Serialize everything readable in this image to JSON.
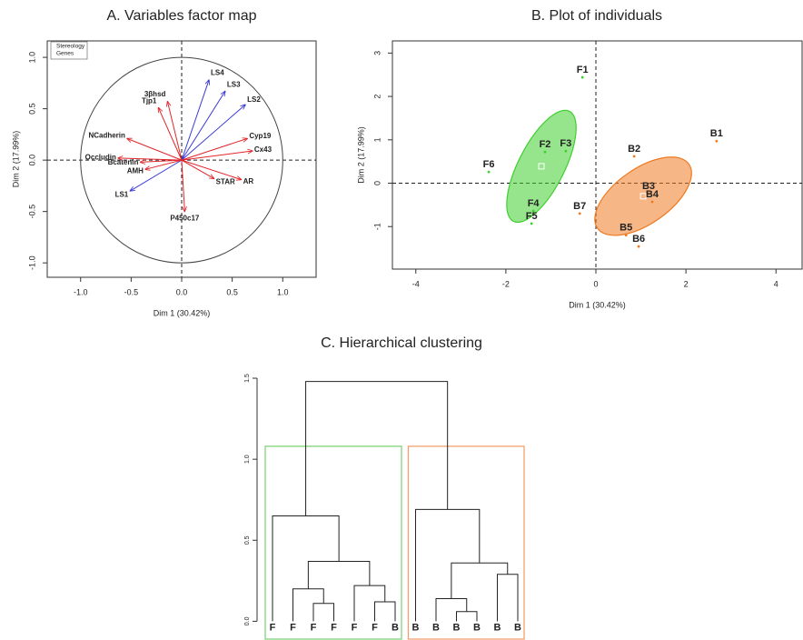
{
  "chart_data": [
    {
      "type": "vector",
      "title": "A. Variables factor map",
      "xlabel": "Dim 1 (30.42%)",
      "ylabel": "Dim 2 (17.99%)",
      "xlim": [
        -1.33,
        1.33
      ],
      "ylim": [
        -1.14,
        1.16
      ],
      "xticks": [
        {
          "value": -1,
          "label": "-1.0"
        },
        {
          "value": -0.5,
          "label": "-0.5"
        },
        {
          "value": 0,
          "label": "0.0"
        },
        {
          "value": 0.5,
          "label": "0.5"
        },
        {
          "value": 1,
          "label": "1.0"
        }
      ],
      "yticks": [
        {
          "value": -1,
          "label": "-1.0"
        },
        {
          "value": -0.5,
          "label": "-0.5"
        },
        {
          "value": 0,
          "label": "0.0"
        },
        {
          "value": 0.5,
          "label": "0.5"
        },
        {
          "value": 1,
          "label": "1.0"
        }
      ],
      "legend": "top-left",
      "series": [
        {
          "name": "Stereology",
          "color": "#3b3bd6",
          "labels": [
            "LS1",
            "LS2",
            "LS3",
            "LS4"
          ],
          "x": [
            -0.51,
            0.63,
            0.43,
            0.27
          ],
          "y": [
            -0.3,
            0.54,
            0.67,
            0.78
          ]
        },
        {
          "name": "Genes",
          "color": "#e0262b",
          "labels": [
            "Cyp19",
            "Cx43",
            "AR",
            "STAR",
            "P450c17",
            "AMH",
            "Bcatenin",
            "Occludin",
            "NCadherin",
            "Tjp1",
            "3βhsd"
          ],
          "x": [
            0.65,
            0.7,
            0.59,
            0.32,
            0.03,
            -0.36,
            -0.41,
            -0.63,
            -0.54,
            -0.23,
            -0.14
          ],
          "y": [
            0.21,
            0.09,
            -0.19,
            -0.18,
            -0.5,
            -0.09,
            -0.02,
            0.02,
            0.21,
            0.51,
            0.57
          ]
        }
      ]
    },
    {
      "type": "scatter",
      "title": "B. Plot of individuals",
      "xlabel": "Dim 1 (30.42%)",
      "ylabel": "Dim 2 (17.99%)",
      "xlim": [
        -4.52,
        4.58
      ],
      "ylim": [
        -1.98,
        3.28
      ],
      "xticks": [
        -4,
        -2,
        0,
        2,
        4
      ],
      "yticks": [
        -1,
        0,
        1,
        2,
        3
      ],
      "series": [
        {
          "color": "#3fcf2f",
          "labels": [
            "F1",
            "F2",
            "F3",
            "F4",
            "F5",
            "F6"
          ],
          "x": [
            -0.3,
            -1.13,
            -0.67,
            -1.39,
            -1.43,
            -2.38
          ],
          "y": [
            2.44,
            0.72,
            0.74,
            -0.64,
            -0.93,
            0.26
          ],
          "ellipse": {
            "center": [
              -1.21,
              0.39
            ],
            "radii": [
              1.37,
              0.51
            ],
            "angle": 63
          }
        },
        {
          "color": "#ee7a22",
          "labels": [
            "B1",
            "B2",
            "B3",
            "B4",
            "B5",
            "B6",
            "B7"
          ],
          "x": [
            2.68,
            0.85,
            1.17,
            1.25,
            0.67,
            0.95,
            -0.36
          ],
          "y": [
            0.97,
            0.62,
            -0.24,
            -0.43,
            -1.2,
            -1.46,
            -0.7
          ],
          "ellipse": {
            "center": [
              1.05,
              -0.3
            ],
            "radii": [
              1.24,
              0.61
            ],
            "angle": 35
          }
        }
      ]
    },
    {
      "type": "dendrogram",
      "title": "C. Hierarchical clustering",
      "ylim": [
        -0.11,
        1.59
      ],
      "yticks": [
        {
          "value": 0,
          "label": "0.0"
        },
        {
          "value": 0.5,
          "label": "0.5"
        },
        {
          "value": 1,
          "label": "1.0"
        },
        {
          "value": 1.5,
          "label": "1.5"
        }
      ],
      "leaves": [
        "F",
        "F",
        "F",
        "F",
        "F",
        "F",
        "B",
        "B",
        "B",
        "B",
        "B",
        "B",
        "B"
      ],
      "label_colors": {
        "F": "#3fcf2f",
        "B": "#ee7a22"
      },
      "merges": [
        {
          "left": 9,
          "right": 10,
          "height": 0.06
        },
        {
          "left": 2,
          "right": 3,
          "height": 0.11
        },
        {
          "left": 5,
          "right": 6,
          "height": 0.12
        },
        {
          "left": 8,
          "right": 13,
          "height": 0.14
        },
        {
          "left": 1,
          "right": 14,
          "height": 0.2
        },
        {
          "left": 4,
          "right": 15,
          "height": 0.22
        },
        {
          "left": 11,
          "right": 12,
          "height": 0.29
        },
        {
          "left": 16,
          "right": 19,
          "height": 0.36
        },
        {
          "left": 17,
          "right": 18,
          "height": 0.37
        },
        {
          "left": 0,
          "right": 21,
          "height": 0.65
        },
        {
          "left": 7,
          "right": 20,
          "height": 0.69
        },
        {
          "left": 22,
          "right": 23,
          "height": 1.48
        }
      ],
      "cut": 1.08,
      "groups": [
        {
          "color": "#7fd47a",
          "size": 7
        },
        {
          "color": "#f0a070",
          "size": 6
        }
      ]
    }
  ]
}
